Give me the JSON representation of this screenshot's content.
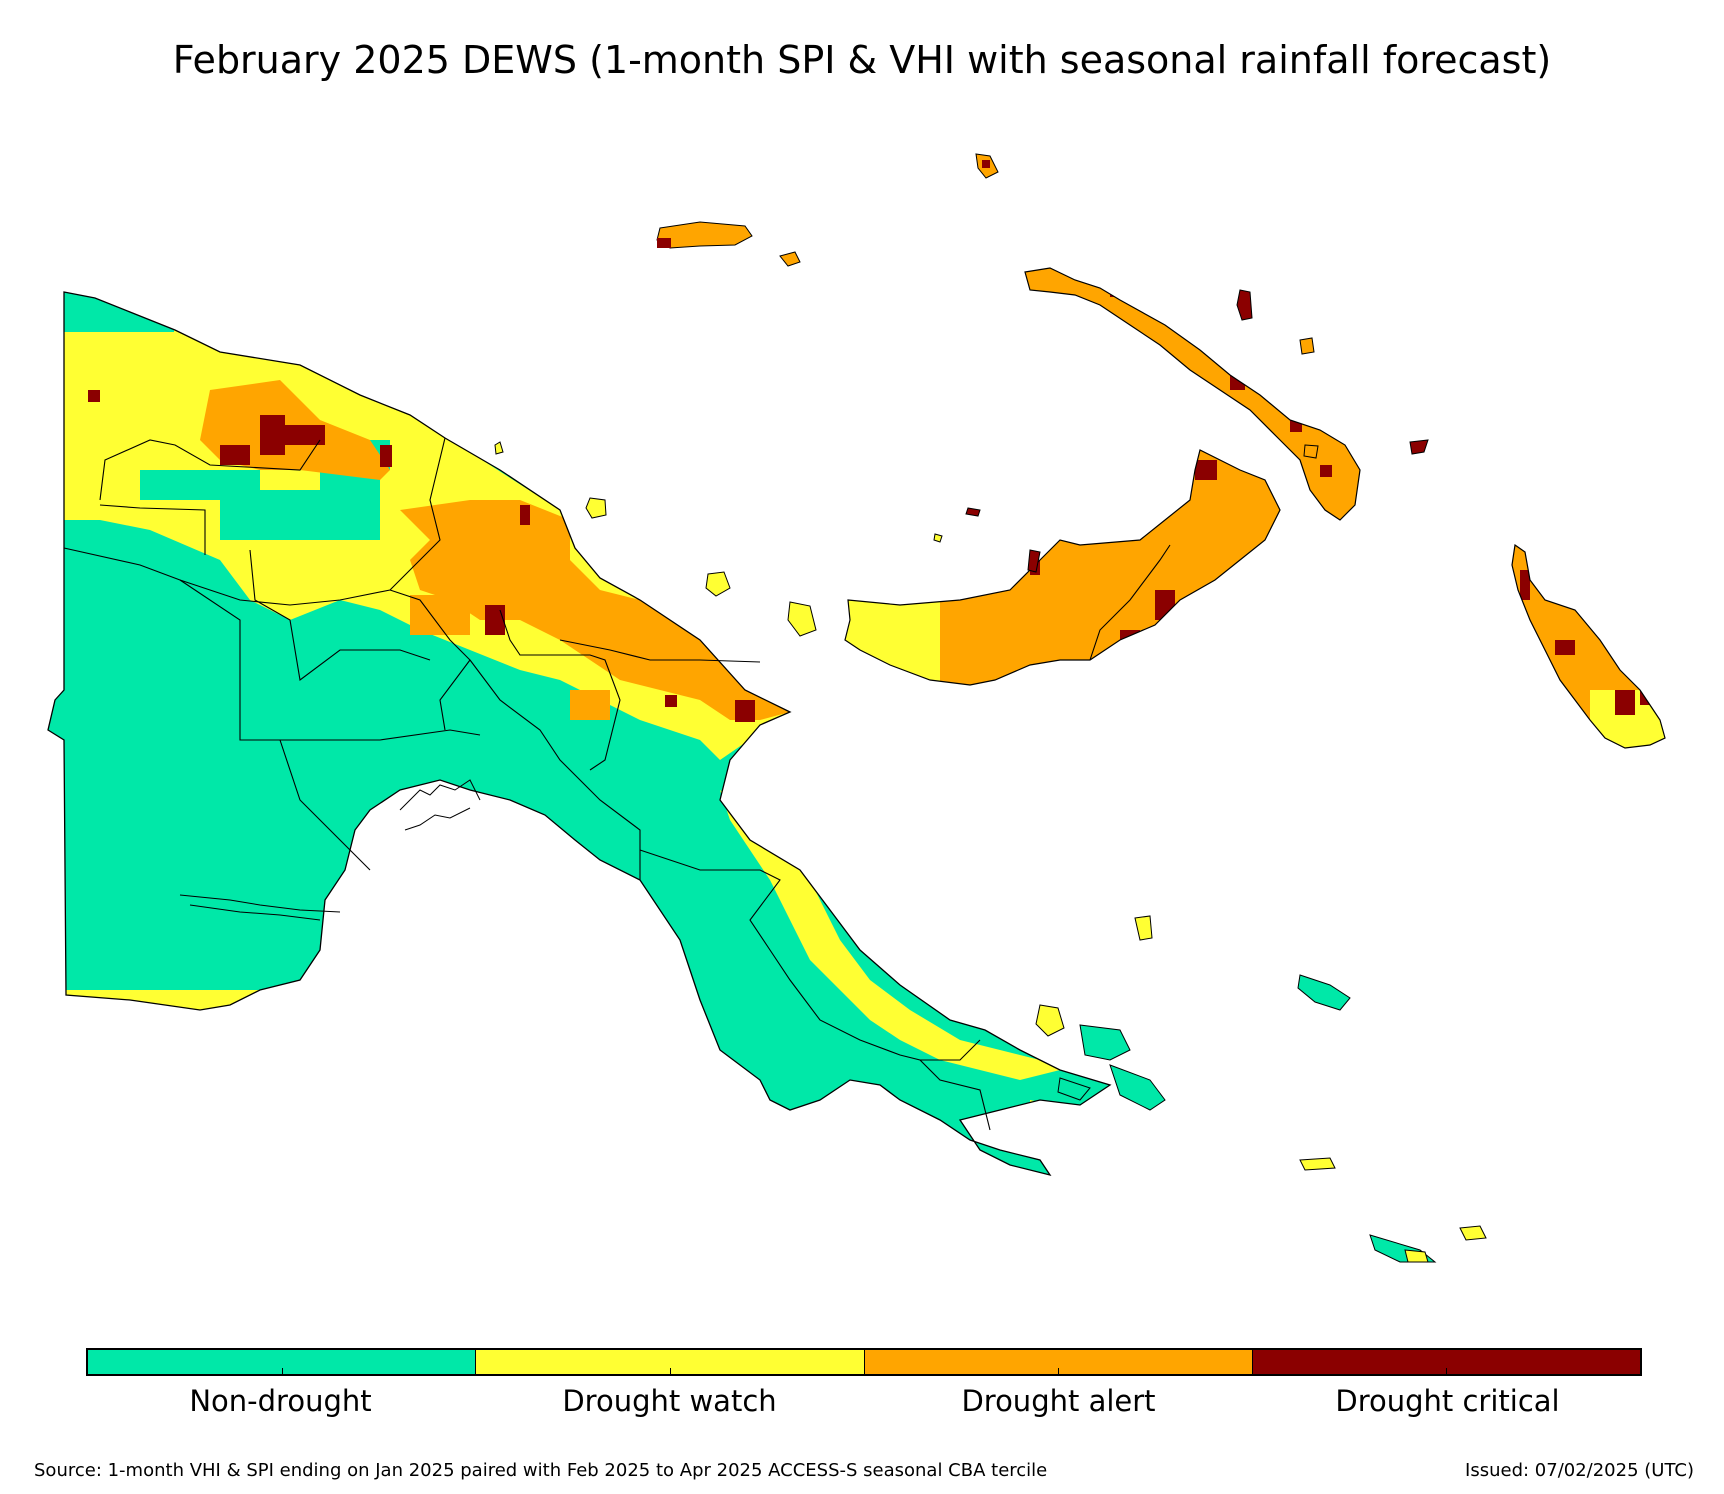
{
  "title": "February 2025 DEWS (1-month SPI & VHI with seasonal rainfall forecast)",
  "colors": {
    "non_drought": "#00e8a8",
    "drought_watch": "#ffff33",
    "drought_alert": "#ffa500",
    "drought_critical": "#8b0000",
    "border": "#000000"
  },
  "legend": {
    "items": [
      {
        "label": "Non-drought",
        "color": "#00e8a8"
      },
      {
        "label": "Drought watch",
        "color": "#ffff33"
      },
      {
        "label": "Drought alert",
        "color": "#ffa500"
      },
      {
        "label": "Drought critical",
        "color": "#8b0000"
      }
    ]
  },
  "footer": {
    "source": "Source: 1-month VHI & SPI ending on Jan 2025 paired with Feb 2025 to Apr 2025 ACCESS-S seasonal CBA tercile",
    "issued": "Issued: 07/02/2025 (UTC)"
  }
}
